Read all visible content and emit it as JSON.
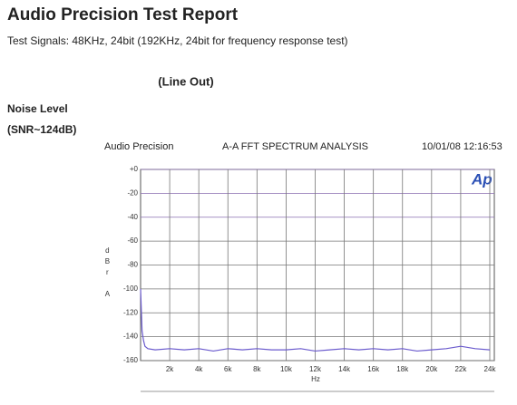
{
  "header": {
    "title": "Audio Precision Test Report",
    "subtitle": "Test Signals: 48KHz, 24bit (192KHz, 24bit for frequency response test)"
  },
  "section": {
    "label": "(Line Out)",
    "heading": "Noise Level",
    "snr": "(SNR~124dB)"
  },
  "chart_data": {
    "type": "line",
    "source": "Audio Precision",
    "title": "A-A FFT SPECTRUM ANALYSIS",
    "timestamp": "10/01/08 12:16:53",
    "logo": "Ap",
    "ylabel": "dBr A",
    "xlabel": "Hz",
    "x": [
      0,
      100,
      200,
      300,
      500,
      1000,
      2000,
      3000,
      4000,
      5000,
      6000,
      7000,
      8000,
      9000,
      10000,
      11000,
      12000,
      13000,
      14000,
      15000,
      16000,
      17000,
      18000,
      19000,
      20000,
      21000,
      22000,
      23000,
      24000
    ],
    "series": [
      {
        "color": "#6a5acd",
        "values": [
          -100,
          -135,
          -143,
          -148,
          -150,
          -151,
          -150,
          -151,
          -150,
          -152,
          -150,
          -151,
          -150,
          -151,
          -151,
          -150,
          -152,
          -151,
          -150,
          -151,
          -150,
          -151,
          -150,
          -152,
          -151,
          -150,
          -148,
          -150,
          -151
        ]
      }
    ],
    "xlim": [
      0,
      24000
    ],
    "xticks": [
      {
        "value": 2000,
        "label": "2k"
      },
      {
        "value": 4000,
        "label": "4k"
      },
      {
        "value": 6000,
        "label": "6k"
      },
      {
        "value": 8000,
        "label": "8k"
      },
      {
        "value": 10000,
        "label": "10k"
      },
      {
        "value": 12000,
        "label": "12k"
      },
      {
        "value": 14000,
        "label": "14k"
      },
      {
        "value": 16000,
        "label": "16k"
      },
      {
        "value": 18000,
        "label": "18k"
      },
      {
        "value": 20000,
        "label": "20k"
      },
      {
        "value": 22000,
        "label": "22k"
      },
      {
        "value": 24000,
        "label": "24k"
      }
    ],
    "ylim": [
      -160,
      0
    ],
    "yticks": [
      {
        "value": 0,
        "label": "+0"
      },
      -20,
      -40,
      -60,
      -80,
      -100,
      -120,
      -140,
      -160
    ],
    "grid": true
  }
}
